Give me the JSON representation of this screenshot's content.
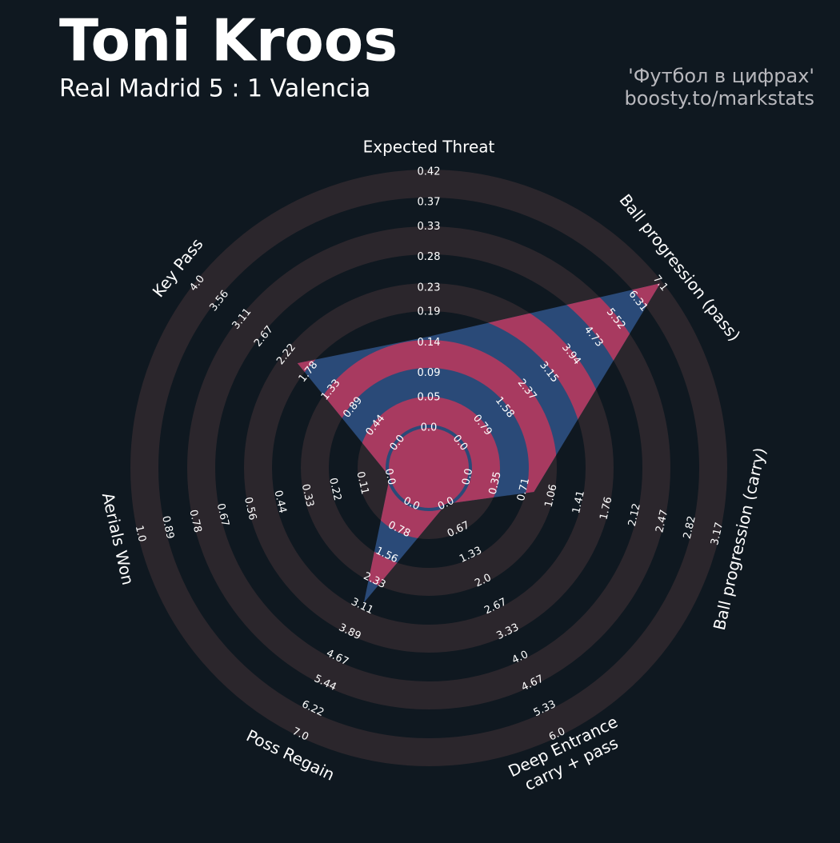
{
  "chart_data": {
    "type": "radar",
    "title": "Toni Kroos",
    "subtitle": "Real Madrid 5 : 1 Valencia",
    "credits": [
      "'Футбол в цифрах'",
      "boosty.to/markstats"
    ],
    "params": [
      [
        "Expected Threat"
      ],
      [
        "Ball progression (pass)"
      ],
      [
        "Ball progression (carry)"
      ],
      [
        "Deep Entrance",
        "carry + pass"
      ],
      [
        "Poss Regain"
      ],
      [
        "Aerials Won"
      ],
      [
        "Key Pass"
      ]
    ],
    "values": [
      0.15,
      7.1,
      0.84,
      0,
      3.0,
      0,
      2.0
    ],
    "ranges": [
      [
        0,
        0.42
      ],
      [
        0,
        7.1
      ],
      [
        0,
        3.17
      ],
      [
        0,
        6
      ],
      [
        0,
        7
      ],
      [
        0,
        1
      ],
      [
        0,
        4
      ]
    ],
    "ticks": [
      [
        {
          "value": 0,
          "label": "0.0"
        },
        0.05,
        0.09,
        0.14,
        0.19,
        0.23,
        0.28,
        0.33,
        0.37,
        0.42
      ],
      [
        {
          "value": 0,
          "label": "0.0"
        },
        0.79,
        1.58,
        2.37,
        3.15,
        3.94,
        4.73,
        5.52,
        6.31,
        7.1
      ],
      [
        {
          "value": 0,
          "label": "0.0"
        },
        0.35,
        0.71,
        1.06,
        1.41,
        1.76,
        2.12,
        2.47,
        2.82,
        3.17
      ],
      [
        {
          "value": 0,
          "label": "0.0"
        },
        0.67,
        1.33,
        {
          "value": 2,
          "label": "2.0"
        },
        2.67,
        3.33,
        {
          "value": 4,
          "label": "4.0"
        },
        4.67,
        5.33,
        {
          "value": 6,
          "label": "6.0"
        }
      ],
      [
        {
          "value": 0,
          "label": "0.0"
        },
        0.78,
        1.56,
        2.33,
        3.11,
        3.89,
        4.67,
        5.44,
        6.22,
        {
          "value": 7,
          "label": "7.0"
        }
      ],
      [
        {
          "value": 0,
          "label": "0.0"
        },
        0.11,
        0.22,
        0.33,
        0.44,
        0.56,
        0.67,
        0.78,
        0.89,
        {
          "value": 1,
          "label": "1.0"
        }
      ],
      [
        {
          "value": 0,
          "label": "0.0"
        },
        0.44,
        0.89,
        1.33,
        1.78,
        2.22,
        2.67,
        3.11,
        3.56,
        {
          "value": 4,
          "label": "4.0"
        }
      ]
    ],
    "colors": {
      "shape": "#2a4a78",
      "highlight": "#a83a60",
      "rings": "#2b262c",
      "background": "#0f1820"
    }
  }
}
